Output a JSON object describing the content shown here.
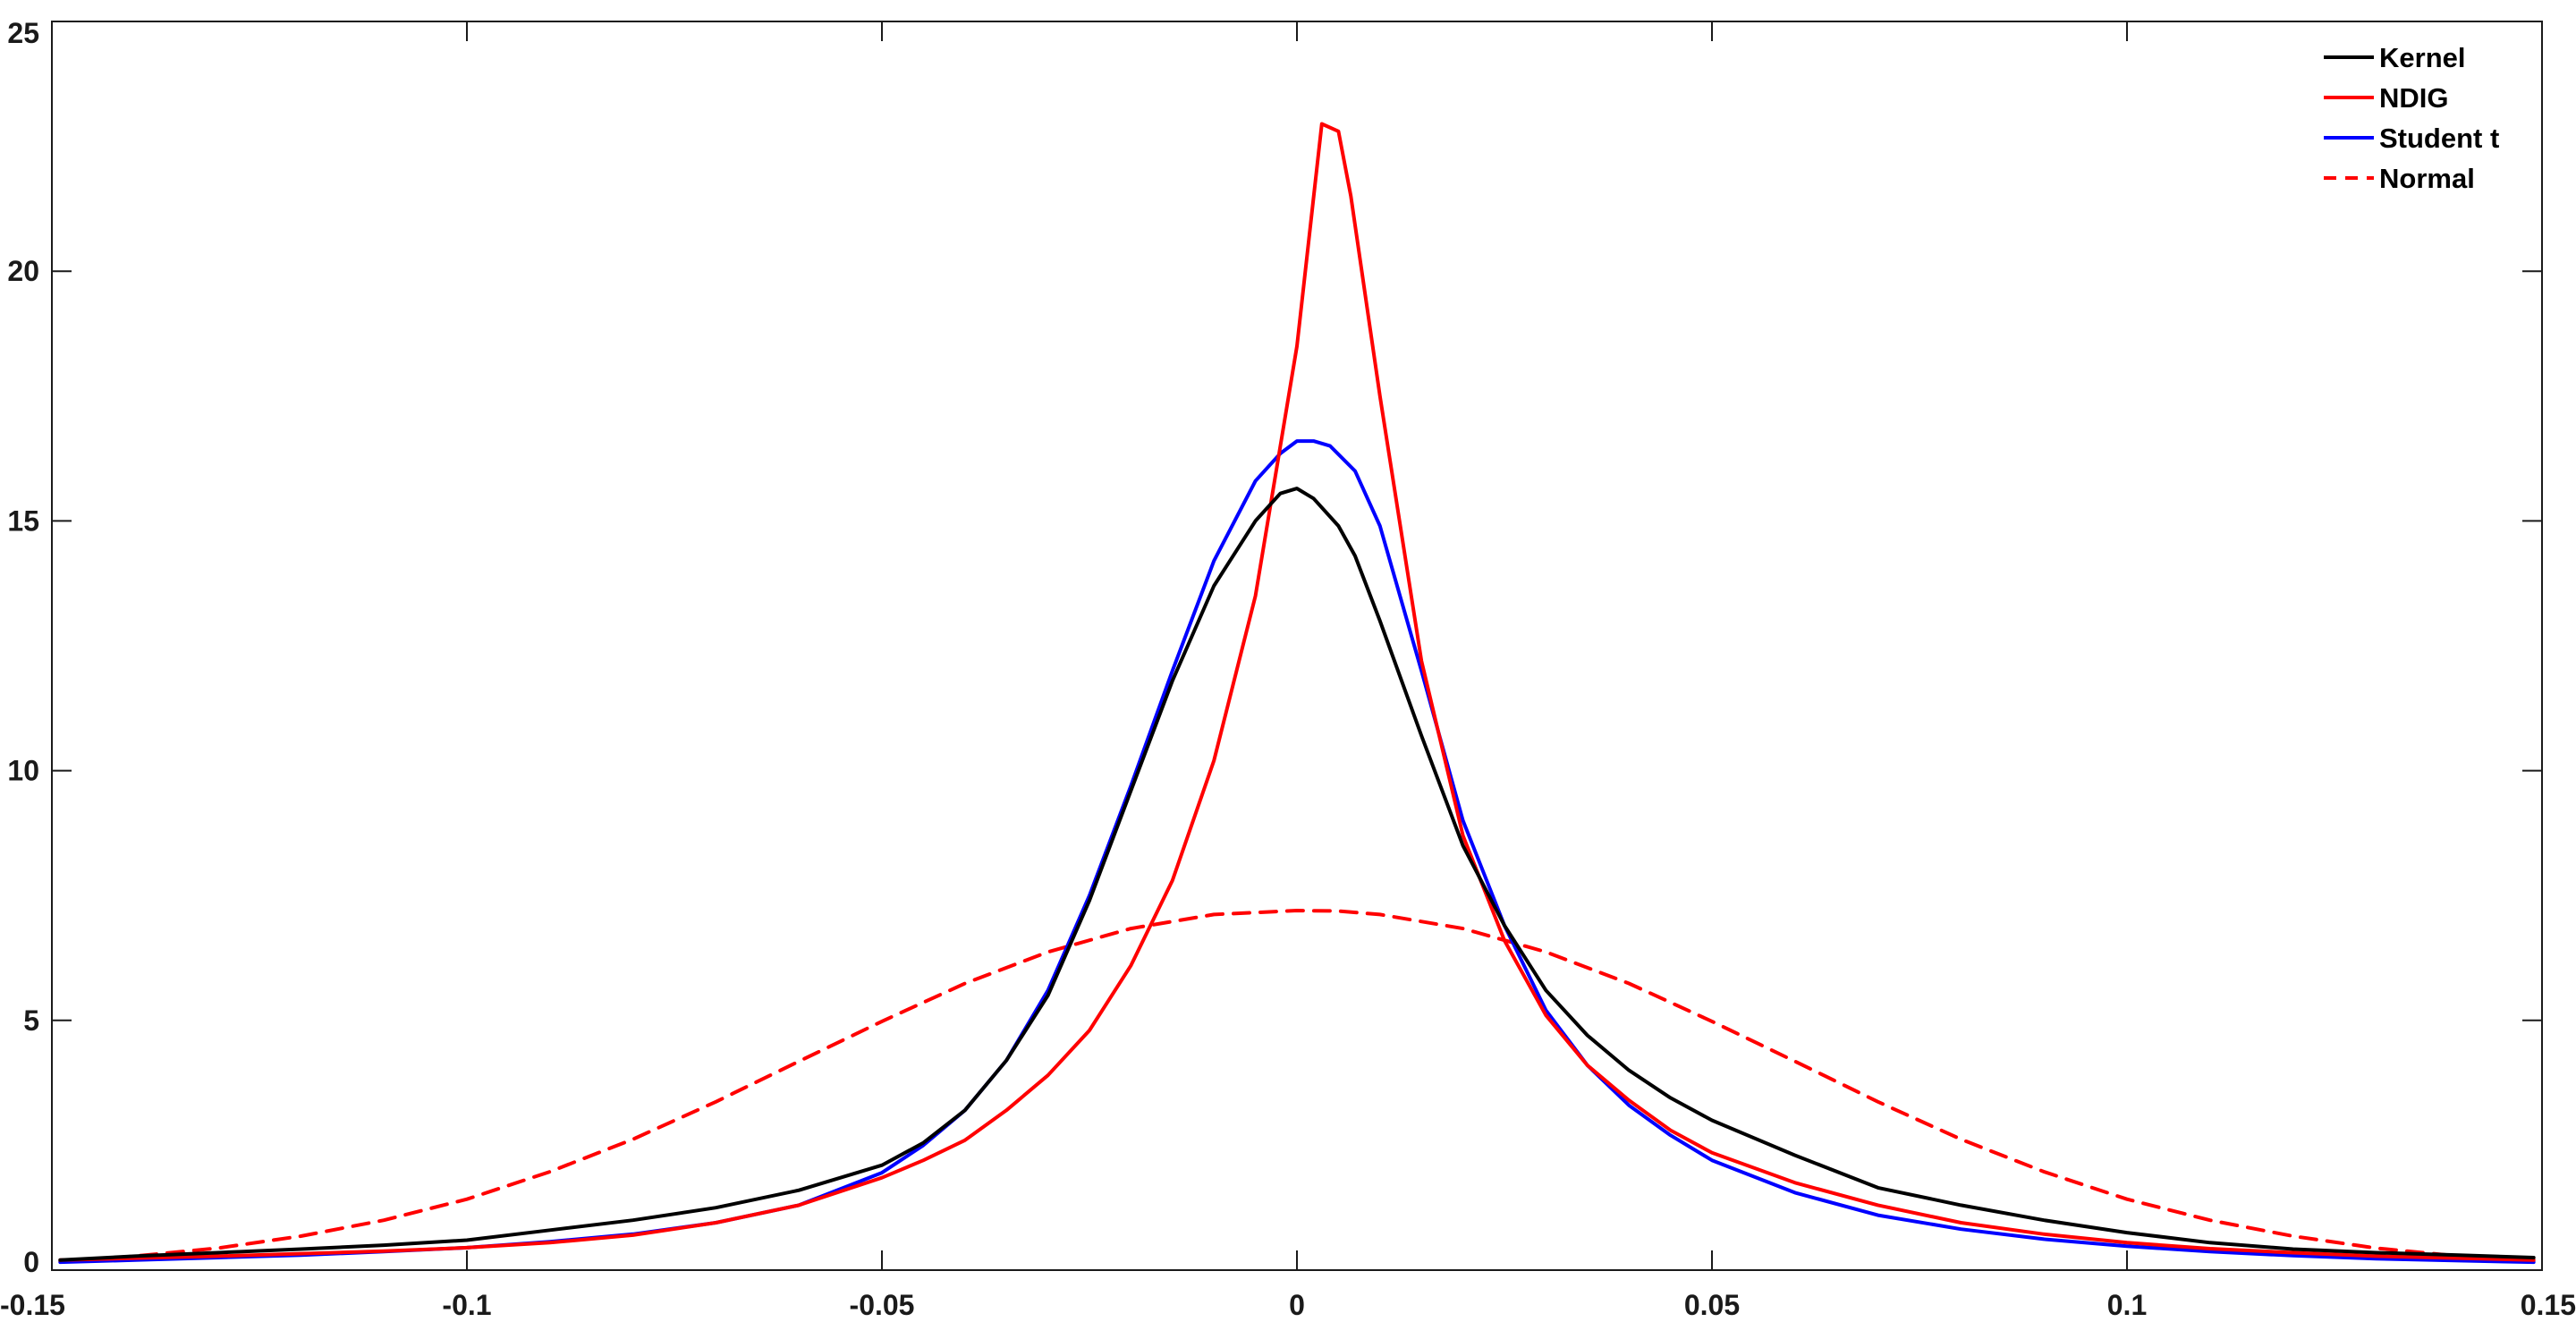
{
  "chart_data": {
    "type": "line",
    "title": "",
    "xlabel": "",
    "ylabel": "",
    "xlim": [
      -0.15,
      0.15
    ],
    "ylim": [
      0,
      25
    ],
    "grid": false,
    "legend_position": "top-right",
    "x_ticks": [
      -0.15,
      -0.1,
      -0.05,
      0,
      0.05,
      0.1,
      0.15
    ],
    "x_tick_labels": [
      "-0.15",
      "-0.1",
      "-0.05",
      "0",
      "0.05",
      "0.1",
      "0.15"
    ],
    "y_ticks": [
      0,
      5,
      10,
      15,
      20,
      25
    ],
    "y_tick_labels": [
      "0",
      "5",
      "10",
      "15",
      "20",
      "25"
    ],
    "series": [
      {
        "name": "Kernel",
        "color": "#000000",
        "dash": "solid",
        "x": [
          -0.149,
          -0.14,
          -0.13,
          -0.12,
          -0.11,
          -0.1,
          -0.09,
          -0.08,
          -0.07,
          -0.06,
          -0.05,
          -0.045,
          -0.04,
          -0.035,
          -0.03,
          -0.025,
          -0.02,
          -0.015,
          -0.01,
          -0.005,
          -0.002,
          0,
          0.002,
          0.005,
          0.007,
          0.01,
          0.015,
          0.02,
          0.025,
          0.03,
          0.035,
          0.04,
          0.045,
          0.05,
          0.06,
          0.07,
          0.08,
          0.09,
          0.1,
          0.11,
          0.12,
          0.13,
          0.14,
          0.149
        ],
        "y": [
          0.2,
          0.28,
          0.35,
          0.42,
          0.5,
          0.6,
          0.8,
          1.0,
          1.25,
          1.6,
          2.1,
          2.55,
          3.2,
          4.2,
          5.5,
          7.4,
          9.6,
          11.8,
          13.7,
          15.0,
          15.55,
          15.65,
          15.45,
          14.9,
          14.3,
          13.0,
          10.7,
          8.5,
          6.9,
          5.6,
          4.7,
          4.0,
          3.45,
          3.0,
          2.3,
          1.65,
          1.3,
          1.0,
          0.75,
          0.55,
          0.42,
          0.35,
          0.3,
          0.25
        ]
      },
      {
        "name": "NDIG",
        "color": "#ff0000",
        "dash": "solid",
        "x": [
          -0.149,
          -0.14,
          -0.13,
          -0.12,
          -0.11,
          -0.1,
          -0.09,
          -0.08,
          -0.07,
          -0.06,
          -0.05,
          -0.045,
          -0.04,
          -0.035,
          -0.03,
          -0.025,
          -0.02,
          -0.015,
          -0.01,
          -0.005,
          0,
          0.003,
          0.005,
          0.0065,
          0.01,
          0.015,
          0.02,
          0.025,
          0.03,
          0.035,
          0.04,
          0.045,
          0.05,
          0.06,
          0.07,
          0.08,
          0.09,
          0.1,
          0.11,
          0.12,
          0.13,
          0.14,
          0.149
        ],
        "y": [
          0.2,
          0.24,
          0.28,
          0.33,
          0.38,
          0.45,
          0.55,
          0.7,
          0.95,
          1.3,
          1.85,
          2.2,
          2.6,
          3.2,
          3.9,
          4.8,
          6.1,
          7.8,
          10.2,
          13.5,
          18.5,
          22.95,
          22.8,
          21.5,
          17.5,
          12.2,
          8.7,
          6.6,
          5.1,
          4.1,
          3.4,
          2.8,
          2.35,
          1.75,
          1.3,
          0.95,
          0.72,
          0.55,
          0.43,
          0.35,
          0.28,
          0.24,
          0.2
        ]
      },
      {
        "name": "Student t",
        "color": "#0000ff",
        "dash": "solid",
        "x": [
          -0.149,
          -0.14,
          -0.13,
          -0.12,
          -0.11,
          -0.1,
          -0.09,
          -0.08,
          -0.07,
          -0.06,
          -0.05,
          -0.045,
          -0.04,
          -0.035,
          -0.03,
          -0.025,
          -0.02,
          -0.015,
          -0.01,
          -0.005,
          -0.002,
          0,
          0.002,
          0.004,
          0.007,
          0.01,
          0.015,
          0.02,
          0.025,
          0.03,
          0.035,
          0.04,
          0.045,
          0.05,
          0.06,
          0.07,
          0.08,
          0.09,
          0.1,
          0.11,
          0.12,
          0.13,
          0.14,
          0.149
        ],
        "y": [
          0.16,
          0.2,
          0.25,
          0.3,
          0.37,
          0.45,
          0.57,
          0.72,
          0.95,
          1.3,
          1.95,
          2.5,
          3.2,
          4.2,
          5.6,
          7.5,
          9.7,
          12.0,
          14.2,
          15.8,
          16.35,
          16.6,
          16.6,
          16.5,
          16.0,
          14.9,
          12.0,
          9.0,
          6.9,
          5.2,
          4.1,
          3.3,
          2.7,
          2.2,
          1.55,
          1.1,
          0.82,
          0.62,
          0.48,
          0.37,
          0.29,
          0.23,
          0.19,
          0.16
        ]
      },
      {
        "name": "Normal",
        "color": "#ff0000",
        "dash": "dashed",
        "x": [
          -0.149,
          -0.14,
          -0.13,
          -0.12,
          -0.11,
          -0.1,
          -0.09,
          -0.08,
          -0.07,
          -0.06,
          -0.05,
          -0.04,
          -0.03,
          -0.02,
          -0.01,
          0,
          0.005,
          0.01,
          0.02,
          0.03,
          0.04,
          0.05,
          0.06,
          0.07,
          0.08,
          0.09,
          0.1,
          0.11,
          0.12,
          0.13,
          0.14,
          0.149
        ],
        "y": [
          0.17,
          0.28,
          0.44,
          0.68,
          1.0,
          1.42,
          1.97,
          2.62,
          3.37,
          4.18,
          4.98,
          5.74,
          6.37,
          6.84,
          7.12,
          7.2,
          7.19,
          7.12,
          6.84,
          6.37,
          5.74,
          4.98,
          4.18,
          3.37,
          2.62,
          1.97,
          1.42,
          1.0,
          0.68,
          0.44,
          0.28,
          0.17
        ]
      }
    ]
  }
}
